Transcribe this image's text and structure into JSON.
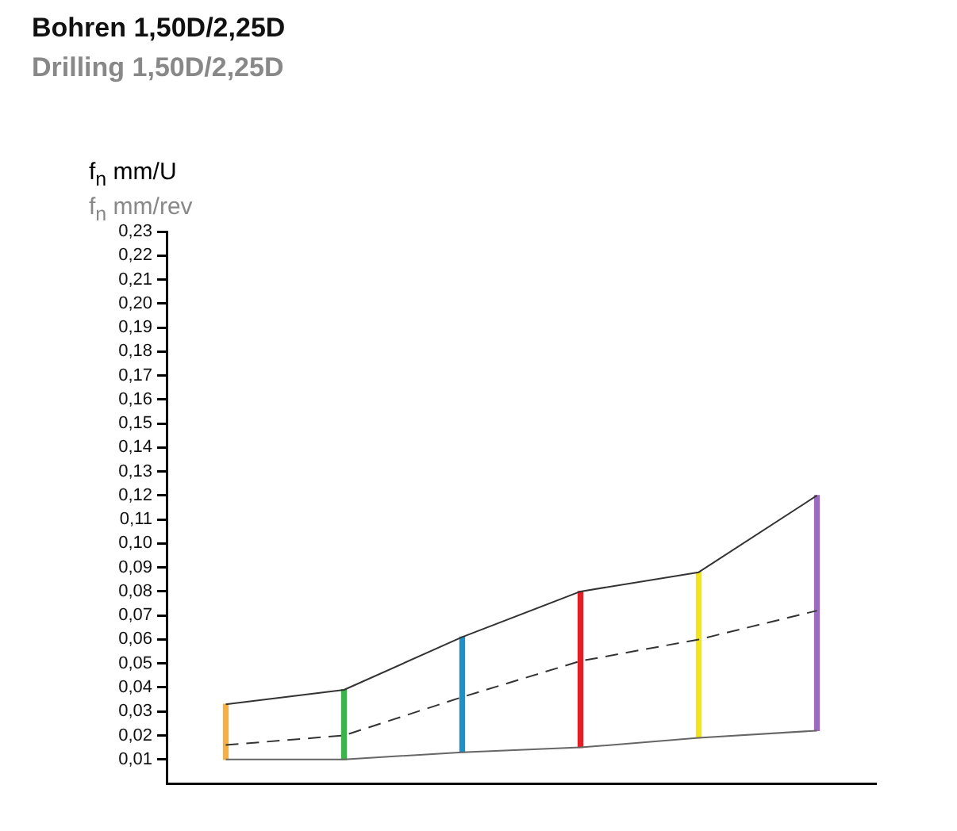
{
  "chart_data": {
    "type": "bar",
    "title": "Bohren 1,50D/2,25D",
    "subtitle": "Drilling 1,50D/2,25D",
    "ylabel": "f$_{n}$ mm/U\nf$_{n}$ mm/rev",
    "categories": [
      null,
      null,
      null,
      null,
      null,
      null
    ],
    "ylim": [
      0,
      0.23
    ],
    "yticks": [
      {
        "value": 0.01,
        "label": "0,01"
      },
      {
        "value": 0.02,
        "label": "0,02"
      },
      {
        "value": 0.03,
        "label": "0,03"
      },
      {
        "value": 0.04,
        "label": "0,04"
      },
      {
        "value": 0.05,
        "label": "0,05"
      },
      {
        "value": 0.06,
        "label": "0,06"
      },
      {
        "value": 0.07,
        "label": "0,07"
      },
      {
        "value": 0.08,
        "label": "0,08"
      },
      {
        "value": 0.09,
        "label": "0,09"
      },
      {
        "value": 0.1,
        "label": "0,10"
      },
      {
        "value": 0.11,
        "label": "0,11"
      },
      {
        "value": 0.12,
        "label": "0,12"
      },
      {
        "value": 0.13,
        "label": "0,13"
      },
      {
        "value": 0.14,
        "label": "0,14"
      },
      {
        "value": 0.15,
        "label": "0,15"
      },
      {
        "value": 0.16,
        "label": "0,16"
      },
      {
        "value": 0.17,
        "label": "0,17"
      },
      {
        "value": 0.18,
        "label": "0,18"
      },
      {
        "value": 0.19,
        "label": "0,19"
      },
      {
        "value": 0.2,
        "label": "0,20"
      },
      {
        "value": 0.21,
        "label": "0,21"
      },
      {
        "value": 0.22,
        "label": "0,22"
      },
      {
        "value": 0.23,
        "label": "0,23"
      }
    ],
    "series": [
      {
        "colors": [
          "#f5b041",
          "#3cb44b",
          "#1f8fc8",
          "#e31e24",
          "#f2e51a",
          "#9b6bbf"
        ],
        "base": [
          0.01,
          0.01,
          0.013,
          0.015,
          0.019,
          0.022
        ],
        "values": [
          0.023,
          0.029,
          0.048,
          0.065,
          0.069,
          0.098
        ]
      },
      {
        "type": "line",
        "color": "#333333",
        "values": [
          0.033,
          0.039,
          0.061,
          0.08,
          0.088,
          0.12
        ]
      },
      {
        "type": "line",
        "color": "#666666",
        "values": [
          0.01,
          0.01,
          0.013,
          0.015,
          0.019,
          0.022
        ]
      },
      {
        "type": "line",
        "color": "#333333",
        "line_style": "dashed",
        "values": [
          0.016,
          0.02,
          0.036,
          0.051,
          0.06,
          0.072
        ]
      }
    ],
    "marker": "none",
    "grid": false,
    "legend": false
  }
}
